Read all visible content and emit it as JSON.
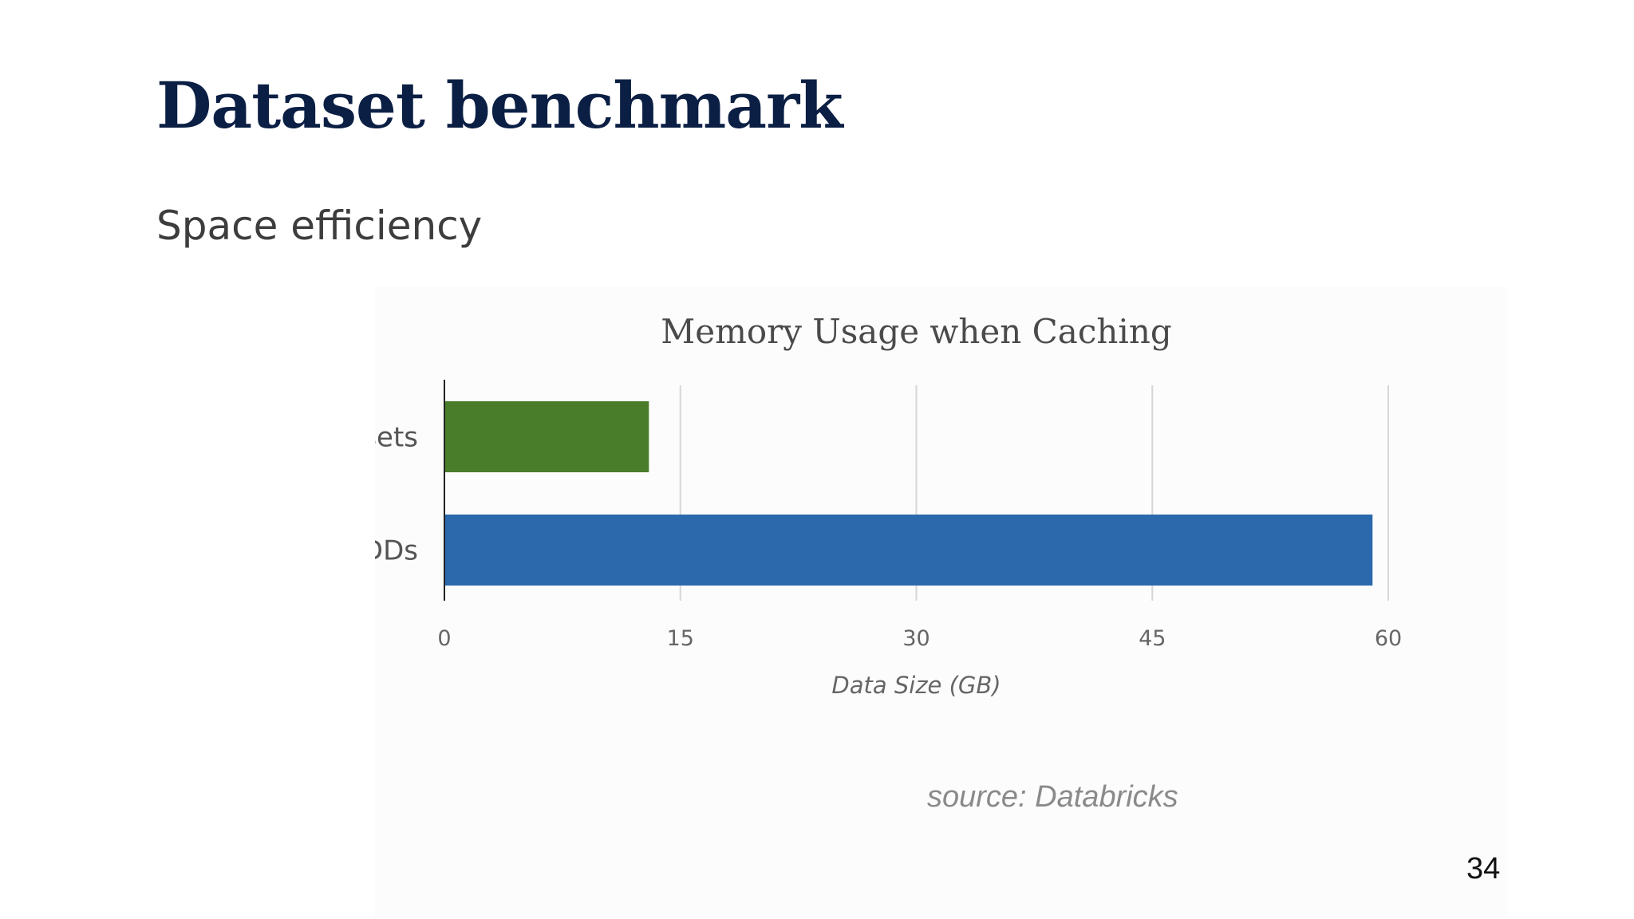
{
  "slide": {
    "title": "Dataset benchmark",
    "subtitle": "Space efficiency",
    "source": "source: Databricks",
    "page_number": "34"
  },
  "chart_data": {
    "type": "bar",
    "orientation": "horizontal",
    "title": "Memory Usage when Caching",
    "xlabel": "Data Size (GB)",
    "ylabel": "",
    "categories": [
      "Datasets",
      "RDDs"
    ],
    "values": [
      13,
      59
    ],
    "colors": [
      "#4a7d2a",
      "#2b69ac"
    ],
    "xlim": [
      0,
      60
    ],
    "xticks": [
      0,
      15,
      30,
      45,
      60
    ],
    "grid": true
  }
}
